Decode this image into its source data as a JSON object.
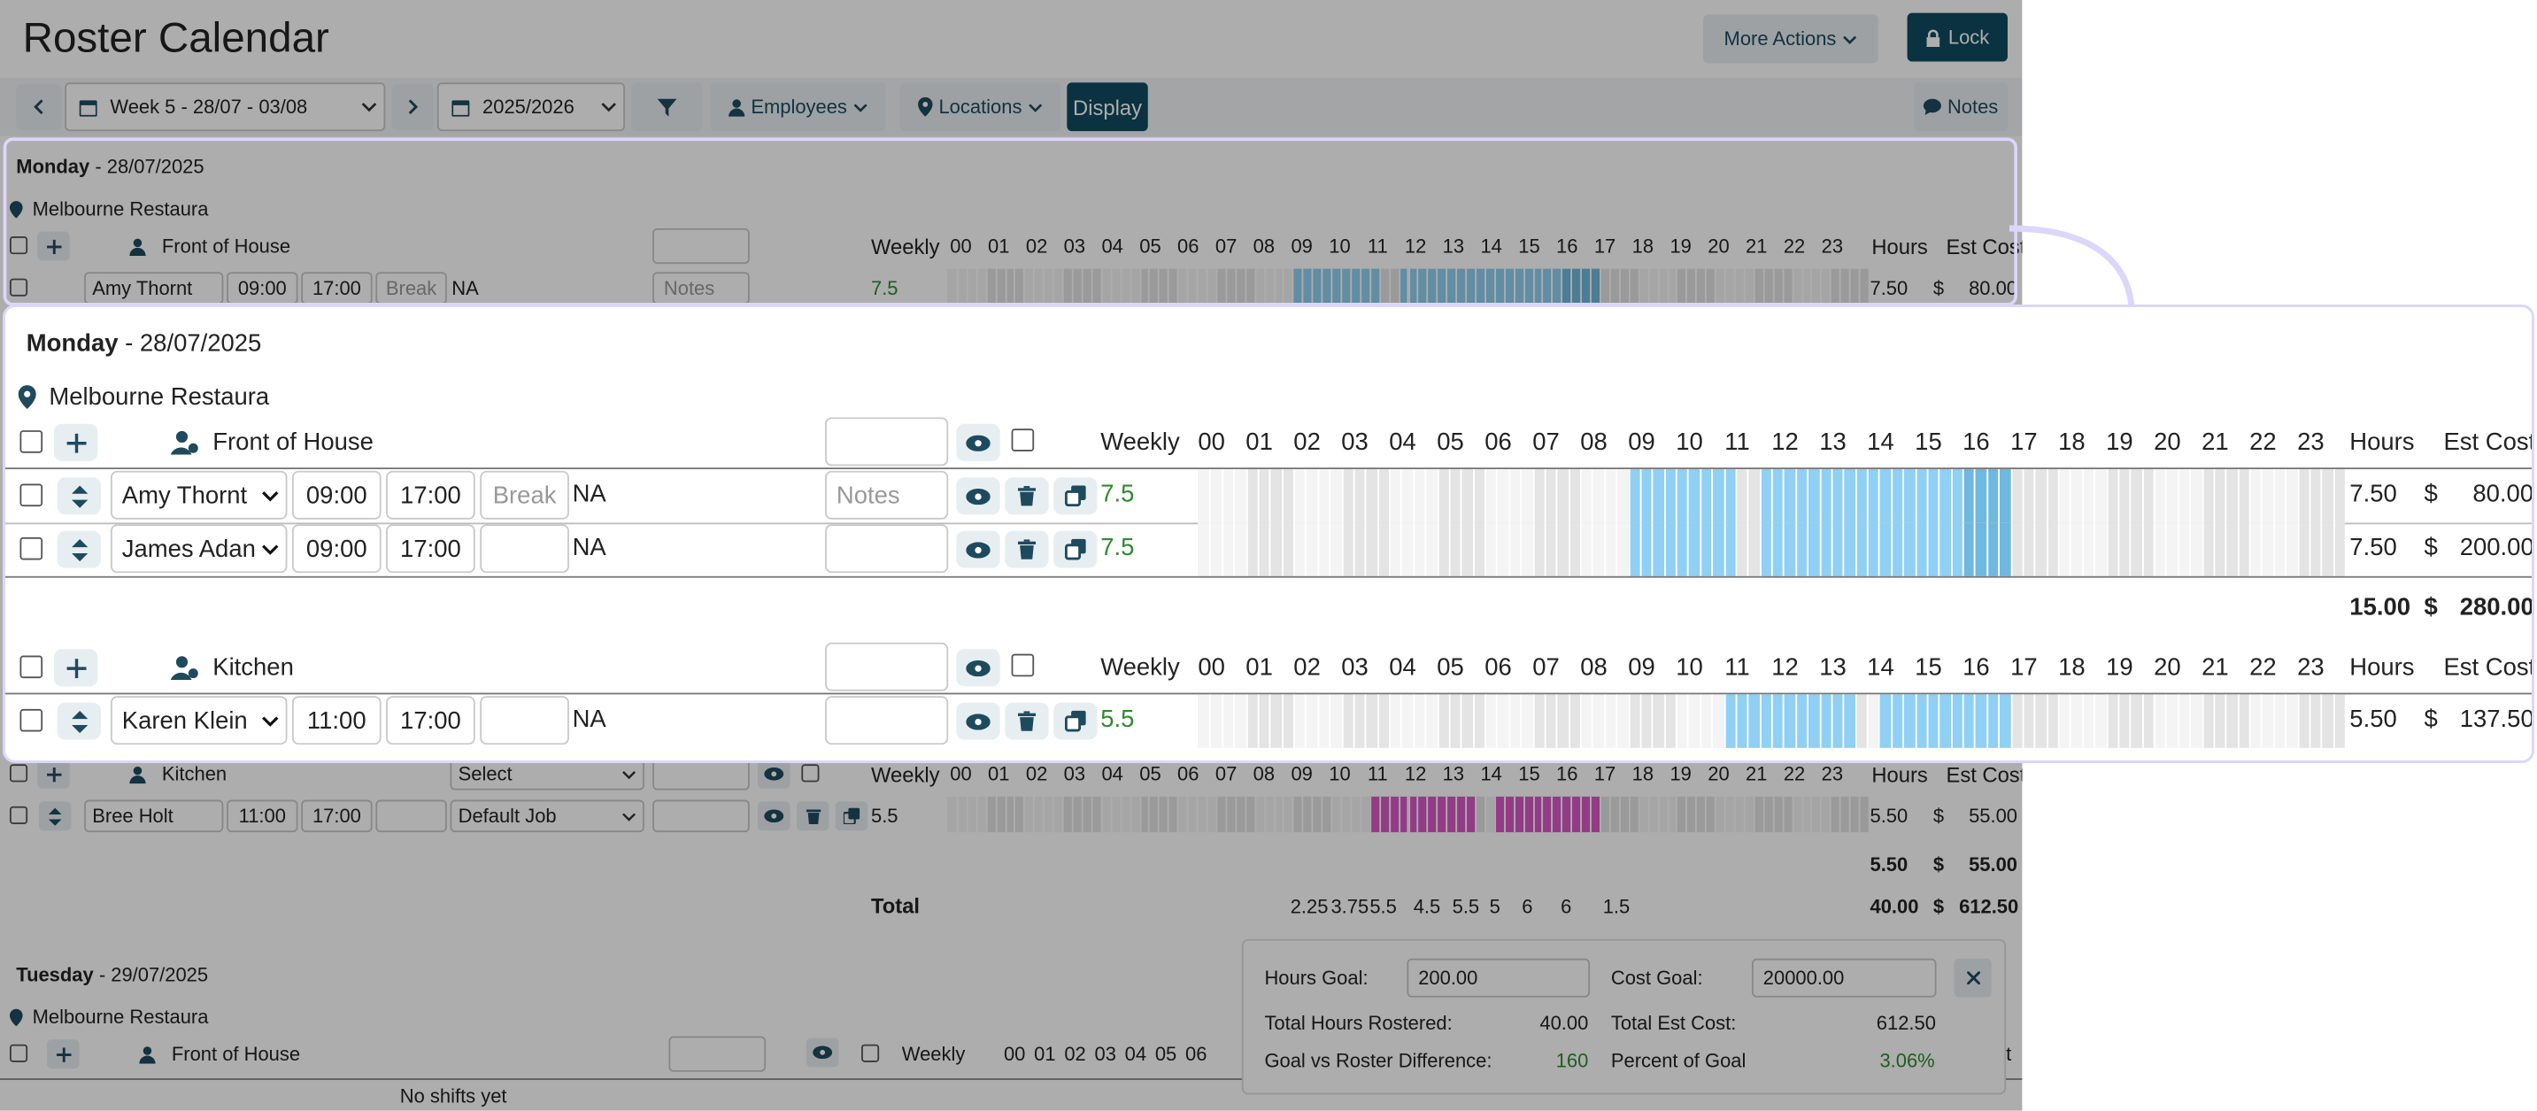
{
  "page_title": "Roster Calendar",
  "toolbar": {
    "more_actions": "More Actions",
    "lock": "Lock",
    "week_label": "Week 5 - 28/07 - 03/08",
    "year_label": "2025/2026",
    "employees": "Employees",
    "locations": "Locations",
    "display": "Display",
    "notes": "Notes"
  },
  "hours": [
    "00",
    "01",
    "02",
    "03",
    "04",
    "05",
    "06",
    "07",
    "08",
    "09",
    "10",
    "11",
    "12",
    "13",
    "14",
    "15",
    "16",
    "17",
    "18",
    "19",
    "20",
    "21",
    "22",
    "23"
  ],
  "columns": {
    "weekly": "Weekly",
    "hours": "Hours",
    "est_cost": "Est Cost",
    "currency": "$"
  },
  "monday": {
    "day": "Monday",
    "date": "- 28/07/2025",
    "location": "Melbourne Restaura",
    "front_of_house": {
      "title": "Front of House",
      "rows": [
        {
          "employee": "Amy Thornt",
          "start": "09:00",
          "end": "17:00",
          "break_placeholder": "Break",
          "job": "NA",
          "notes_placeholder": "Notes",
          "weekly": "7.5",
          "hours": "7.50",
          "cost": "80.00"
        },
        {
          "employee": "James Adan",
          "start": "09:00",
          "end": "17:00",
          "break_placeholder": "",
          "job": "NA",
          "notes_placeholder": "",
          "weekly": "7.5",
          "hours": "7.50",
          "cost": "200.00"
        }
      ],
      "subtotal_hours": "15.00",
      "subtotal_cost": "280.00"
    },
    "kitchen": {
      "title": "Kitchen",
      "rows": [
        {
          "employee": "Karen Klein",
          "start": "11:00",
          "end": "17:00",
          "job": "NA",
          "weekly": "5.5",
          "hours": "5.50",
          "cost": "137.50"
        }
      ]
    },
    "kitchen2": {
      "title": "Kitchen",
      "select_placeholder": "Select",
      "row": {
        "employee": "Bree Holt",
        "start": "11:00",
        "end": "17:00",
        "job": "Default Job",
        "weekly": "5.5",
        "hours": "5.50",
        "cost": "55.00"
      },
      "subtotal_hours": "5.50",
      "subtotal_cost": "55.00"
    },
    "total": {
      "label": "Total",
      "hourly": [
        "2.25",
        "3.75",
        "5.5",
        "4.5",
        "5.5",
        "5",
        "6",
        "6",
        "1.5"
      ],
      "hours": "40.00",
      "cost": "612.50"
    }
  },
  "tuesday": {
    "day": "Tuesday",
    "date": "- 29/07/2025",
    "location": "Melbourne Restaura",
    "front_of_house": "Front of House",
    "empty": "No shifts yet",
    "hours_cut": "00 01 02 03 04 05 06",
    "est_cut": "st"
  },
  "goals": {
    "hours_goal_label": "Hours Goal:",
    "hours_goal_value": "200.00",
    "cost_goal_label": "Cost Goal:",
    "cost_goal_value": "20000.00",
    "total_hours_label": "Total Hours Rostered:",
    "total_hours_value": "40.00",
    "total_cost_label": "Total Est Cost:",
    "total_cost_value": "612.50",
    "diff_label": "Goal vs Roster Difference:",
    "diff_value": "160",
    "percent_label": "Percent of Goal",
    "percent_value": "3.06%"
  },
  "colors": {
    "shift_blue": "#8fd0f4",
    "shift_blue_dark": "#6fb8df",
    "shift_magenta": "#d957c8",
    "accent": "#0f4a5f",
    "highlight": "#ddd6fb",
    "positive": "#2f8a2f"
  }
}
